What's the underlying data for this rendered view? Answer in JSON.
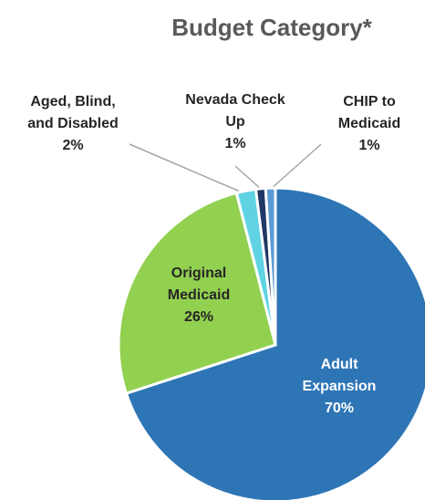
{
  "chart_data": {
    "type": "pie",
    "title": "Budget Category*",
    "categories": [
      "Adult Expansion",
      "Original Medicaid",
      "Aged, Blind, and Disabled",
      "Nevada Check Up",
      "CHIP to Medicaid"
    ],
    "values": [
      70,
      26,
      2,
      1,
      1
    ],
    "value_labels": [
      "70%",
      "26%",
      "2%",
      "1%",
      "1%"
    ],
    "colors": [
      "#2e75b6",
      "#92d050",
      "#5fd3e3",
      "#1f3864",
      "#5b9bd5"
    ]
  }
}
